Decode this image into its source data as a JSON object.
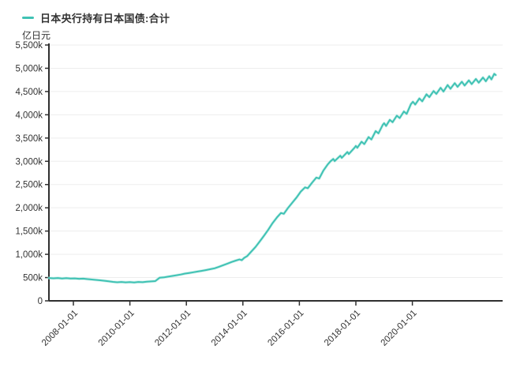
{
  "legend": {
    "label": "日本央行持有日本国债:合计",
    "color": "#40c2b4"
  },
  "unit_label": "亿日元",
  "colors": {
    "line": "#40c2b4",
    "line_halo": "#a7e6dd",
    "grid": "#ededed",
    "axis": "#2f2f2f",
    "text": "#333333",
    "background": "#ffffff"
  },
  "chart_data": {
    "type": "line",
    "title": "日本央行持有日本国债:合计",
    "ylabel": "亿日元",
    "xlabel": "",
    "ylim": [
      0,
      5500
    ],
    "y_unit": "k (thousand 亿日元)",
    "grid": true,
    "legend_position": "top-left",
    "y_ticks": [
      {
        "v": 0,
        "label": "0"
      },
      {
        "v": 500,
        "label": "500k"
      },
      {
        "v": 1000,
        "label": "1,000k"
      },
      {
        "v": 1500,
        "label": "1,500k"
      },
      {
        "v": 2000,
        "label": "2,000k"
      },
      {
        "v": 2500,
        "label": "2,500k"
      },
      {
        "v": 3000,
        "label": "3,000k"
      },
      {
        "v": 3500,
        "label": "3,500k"
      },
      {
        "v": 4000,
        "label": "4,000k"
      },
      {
        "v": 4500,
        "label": "4,500k"
      },
      {
        "v": 5000,
        "label": "5,000k"
      },
      {
        "v": 5500,
        "label": "5,500k"
      }
    ],
    "x_ticks": [
      {
        "t": 2008,
        "label": "2008-01-01"
      },
      {
        "t": 2010,
        "label": "2010-01-01"
      },
      {
        "t": 2012,
        "label": "2012-01-01"
      },
      {
        "t": 2014,
        "label": "2014-01-01"
      },
      {
        "t": 2016,
        "label": "2016-01-01"
      },
      {
        "t": 2018,
        "label": "2018-01-01"
      },
      {
        "t": 2020,
        "label": "2020-01-01"
      }
    ],
    "series": [
      {
        "name": "日本央行持有日本国债:合计",
        "color": "#40c2b4",
        "points": [
          [
            2007.13,
            490
          ],
          [
            2007.3,
            483
          ],
          [
            2007.45,
            490
          ],
          [
            2007.6,
            481
          ],
          [
            2007.75,
            487
          ],
          [
            2007.9,
            478
          ],
          [
            2008.05,
            482
          ],
          [
            2008.2,
            473
          ],
          [
            2008.35,
            477
          ],
          [
            2008.5,
            466
          ],
          [
            2008.65,
            459
          ],
          [
            2008.8,
            450
          ],
          [
            2008.95,
            442
          ],
          [
            2009.1,
            432
          ],
          [
            2009.25,
            420
          ],
          [
            2009.4,
            408
          ],
          [
            2009.55,
            399
          ],
          [
            2009.7,
            405
          ],
          [
            2009.85,
            397
          ],
          [
            2010.0,
            402
          ],
          [
            2010.15,
            396
          ],
          [
            2010.3,
            405
          ],
          [
            2010.45,
            400
          ],
          [
            2010.6,
            410
          ],
          [
            2010.75,
            417
          ],
          [
            2010.9,
            425
          ],
          [
            2011.05,
            495
          ],
          [
            2011.2,
            505
          ],
          [
            2011.35,
            520
          ],
          [
            2011.5,
            535
          ],
          [
            2011.65,
            550
          ],
          [
            2011.8,
            565
          ],
          [
            2011.95,
            585
          ],
          [
            2012.1,
            600
          ],
          [
            2012.25,
            615
          ],
          [
            2012.4,
            630
          ],
          [
            2012.55,
            645
          ],
          [
            2012.7,
            662
          ],
          [
            2012.85,
            680
          ],
          [
            2013.0,
            700
          ],
          [
            2013.15,
            732
          ],
          [
            2013.3,
            765
          ],
          [
            2013.45,
            800
          ],
          [
            2013.6,
            835
          ],
          [
            2013.75,
            865
          ],
          [
            2013.88,
            890
          ],
          [
            2013.96,
            875
          ],
          [
            2014.05,
            925
          ],
          [
            2014.15,
            960
          ],
          [
            2014.3,
            1060
          ],
          [
            2014.45,
            1160
          ],
          [
            2014.6,
            1280
          ],
          [
            2014.75,
            1400
          ],
          [
            2014.9,
            1530
          ],
          [
            2015.05,
            1670
          ],
          [
            2015.2,
            1790
          ],
          [
            2015.35,
            1890
          ],
          [
            2015.45,
            1870
          ],
          [
            2015.6,
            2000
          ],
          [
            2015.75,
            2110
          ],
          [
            2015.9,
            2220
          ],
          [
            2016.05,
            2350
          ],
          [
            2016.2,
            2440
          ],
          [
            2016.3,
            2420
          ],
          [
            2016.45,
            2540
          ],
          [
            2016.6,
            2650
          ],
          [
            2016.7,
            2630
          ],
          [
            2016.85,
            2800
          ],
          [
            2017.0,
            2930
          ],
          [
            2017.1,
            3000
          ],
          [
            2017.2,
            3050
          ],
          [
            2017.25,
            3005
          ],
          [
            2017.45,
            3120
          ],
          [
            2017.5,
            3075
          ],
          [
            2017.7,
            3200
          ],
          [
            2017.75,
            3155
          ],
          [
            2017.95,
            3290
          ],
          [
            2018.0,
            3330
          ],
          [
            2018.05,
            3290
          ],
          [
            2018.2,
            3420
          ],
          [
            2018.3,
            3370
          ],
          [
            2018.45,
            3520
          ],
          [
            2018.55,
            3470
          ],
          [
            2018.7,
            3650
          ],
          [
            2018.8,
            3600
          ],
          [
            2018.95,
            3780
          ],
          [
            2019.0,
            3820
          ],
          [
            2019.07,
            3760
          ],
          [
            2019.2,
            3890
          ],
          [
            2019.3,
            3840
          ],
          [
            2019.45,
            3980
          ],
          [
            2019.55,
            3930
          ],
          [
            2019.7,
            4070
          ],
          [
            2019.8,
            4020
          ],
          [
            2019.95,
            4230
          ],
          [
            2020.02,
            4280
          ],
          [
            2020.1,
            4220
          ],
          [
            2020.25,
            4350
          ],
          [
            2020.35,
            4290
          ],
          [
            2020.5,
            4440
          ],
          [
            2020.6,
            4380
          ],
          [
            2020.75,
            4510
          ],
          [
            2020.85,
            4450
          ],
          [
            2021.0,
            4580
          ],
          [
            2021.1,
            4500
          ],
          [
            2021.25,
            4640
          ],
          [
            2021.35,
            4560
          ],
          [
            2021.5,
            4680
          ],
          [
            2021.6,
            4600
          ],
          [
            2021.75,
            4710
          ],
          [
            2021.85,
            4630
          ],
          [
            2022.0,
            4740
          ],
          [
            2022.1,
            4660
          ],
          [
            2022.25,
            4770
          ],
          [
            2022.35,
            4690
          ],
          [
            2022.5,
            4800
          ],
          [
            2022.6,
            4720
          ],
          [
            2022.72,
            4830
          ],
          [
            2022.8,
            4760
          ],
          [
            2022.9,
            4880
          ],
          [
            2022.95,
            4855
          ]
        ]
      }
    ]
  }
}
